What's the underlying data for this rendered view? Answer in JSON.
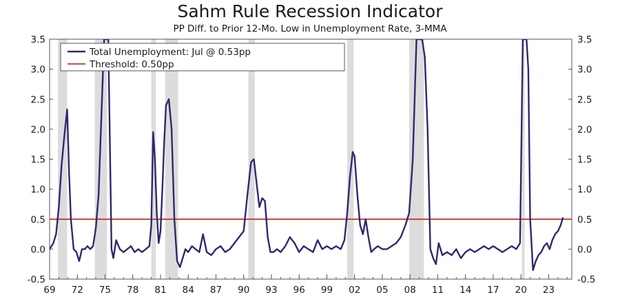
{
  "chart_data": {
    "type": "line",
    "title": "Sahm Rule Recession Indicator",
    "subtitle": "PP Diff. to Prior 12-Mo. Low in Unemployment Rate, 3-MMA",
    "xlabel": "",
    "ylabel": "",
    "xlim": [
      1969.0,
      2025.5
    ],
    "ylim": [
      -0.5,
      3.5
    ],
    "y_ticks": [
      3.5,
      3.0,
      2.5,
      2.0,
      1.5,
      1.0,
      0.5,
      0.0,
      -0.5
    ],
    "y_tick_labels": [
      "3.5",
      "3.0",
      "2.5",
      "2.0",
      "1.5",
      "1.0",
      "0.5",
      "0.0",
      "-0.5"
    ],
    "x_ticks": [
      1969,
      1972,
      1975,
      1978,
      1981,
      1984,
      1987,
      1990,
      1993,
      1996,
      1999,
      2002,
      2005,
      2008,
      2011,
      2014,
      2017,
      2020,
      2023
    ],
    "x_tick_labels": [
      "69",
      "72",
      "75",
      "78",
      "81",
      "84",
      "87",
      "90",
      "93",
      "96",
      "99",
      "02",
      "05",
      "08",
      "11",
      "14",
      "17",
      "20",
      "23"
    ],
    "grid": false,
    "legend_position": "top-left",
    "recessions": [
      [
        1969.9,
        1970.9
      ],
      [
        1973.9,
        1975.2
      ],
      [
        1980.0,
        1980.5
      ],
      [
        1981.5,
        1982.9
      ],
      [
        1990.5,
        1991.2
      ],
      [
        2001.2,
        2001.9
      ],
      [
        2007.9,
        2009.5
      ],
      [
        2020.1,
        2020.4
      ]
    ],
    "colors": {
      "series": "#2b2a6e",
      "threshold": "#c0392b",
      "recession": "#dcdcdc",
      "axis": "#555555"
    },
    "series": [
      {
        "name": "Total Unemployment: Jul @ 0.53pp",
        "color": "#2b2a6e",
        "x": [
          1969.0,
          1969.4,
          1969.7,
          1970.0,
          1970.3,
          1970.6,
          1970.9,
          1971.1,
          1971.3,
          1971.6,
          1971.9,
          1972.2,
          1972.5,
          1972.8,
          1973.1,
          1973.4,
          1973.7,
          1974.0,
          1974.3,
          1974.6,
          1974.9,
          1975.2,
          1975.35,
          1975.5,
          1975.7,
          1975.9,
          1976.2,
          1976.6,
          1977.0,
          1977.4,
          1977.8,
          1978.2,
          1978.6,
          1979.0,
          1979.4,
          1979.8,
          1980.0,
          1980.2,
          1980.4,
          1980.6,
          1980.8,
          1981.0,
          1981.2,
          1981.4,
          1981.6,
          1981.9,
          1982.2,
          1982.5,
          1982.8,
          1983.1,
          1983.4,
          1983.7,
          1984.0,
          1984.4,
          1984.8,
          1985.2,
          1985.6,
          1986.0,
          1986.5,
          1987.0,
          1987.5,
          1988.0,
          1988.5,
          1989.0,
          1989.5,
          1990.0,
          1990.4,
          1990.8,
          1991.1,
          1991.4,
          1991.7,
          1992.0,
          1992.3,
          1992.6,
          1992.9,
          1993.2,
          1993.6,
          1994.0,
          1994.5,
          1995.0,
          1995.5,
          1996.0,
          1996.5,
          1997.0,
          1997.5,
          1998.0,
          1998.5,
          1999.0,
          1999.5,
          2000.0,
          2000.5,
          2000.9,
          2001.2,
          2001.5,
          2001.8,
          2002.0,
          2002.3,
          2002.6,
          2002.9,
          2003.2,
          2003.5,
          2003.8,
          2004.1,
          2004.5,
          2005.0,
          2005.5,
          2006.0,
          2006.5,
          2007.0,
          2007.5,
          2007.9,
          2008.3,
          2008.7,
          2009.0,
          2009.3,
          2009.6,
          2009.9,
          2010.2,
          2010.5,
          2010.8,
          2011.1,
          2011.5,
          2012.0,
          2012.5,
          2013.0,
          2013.5,
          2014.0,
          2014.5,
          2015.0,
          2015.5,
          2016.0,
          2016.5,
          2017.0,
          2017.5,
          2018.0,
          2018.5,
          2019.0,
          2019.5,
          2019.9,
          2020.2,
          2020.4,
          2020.6,
          2020.8,
          2021.0,
          2021.3,
          2021.6,
          2021.9,
          2022.2,
          2022.5,
          2022.8,
          2023.1,
          2023.4,
          2023.7,
          2024.0,
          2024.3,
          2024.55
        ],
        "y": [
          0.0,
          0.1,
          0.25,
          0.7,
          1.4,
          1.9,
          2.33,
          1.3,
          0.5,
          0.0,
          -0.05,
          -0.2,
          0.0,
          0.0,
          0.05,
          0.0,
          0.05,
          0.35,
          0.9,
          2.2,
          3.5,
          3.5,
          3.5,
          2.0,
          0.0,
          -0.15,
          0.15,
          0.0,
          -0.05,
          0.0,
          0.05,
          -0.05,
          0.0,
          -0.05,
          0.0,
          0.05,
          0.4,
          1.95,
          1.5,
          0.6,
          0.1,
          0.3,
          1.0,
          1.8,
          2.4,
          2.5,
          2.0,
          0.5,
          -0.2,
          -0.3,
          -0.15,
          0.0,
          -0.05,
          0.05,
          0.0,
          -0.05,
          0.25,
          -0.05,
          -0.1,
          0.0,
          0.05,
          -0.05,
          0.0,
          0.1,
          0.2,
          0.3,
          0.9,
          1.45,
          1.5,
          1.1,
          0.7,
          0.85,
          0.8,
          0.2,
          -0.05,
          -0.05,
          0.0,
          -0.05,
          0.05,
          0.2,
          0.1,
          -0.05,
          0.05,
          0.0,
          -0.05,
          0.15,
          0.0,
          0.05,
          0.0,
          0.05,
          0.0,
          0.15,
          0.6,
          1.2,
          1.62,
          1.55,
          0.9,
          0.4,
          0.25,
          0.5,
          0.2,
          -0.05,
          0.0,
          0.05,
          0.0,
          0.0,
          0.05,
          0.1,
          0.2,
          0.4,
          0.6,
          1.5,
          3.5,
          3.5,
          3.5,
          3.2,
          2.0,
          0.0,
          -0.15,
          -0.25,
          0.1,
          -0.1,
          -0.05,
          -0.1,
          0.0,
          -0.15,
          -0.05,
          0.0,
          -0.05,
          0.0,
          0.05,
          0.0,
          0.05,
          0.0,
          -0.05,
          0.0,
          0.05,
          0.0,
          0.1,
          3.5,
          3.5,
          3.5,
          3.0,
          0.5,
          -0.35,
          -0.2,
          -0.1,
          -0.05,
          0.05,
          0.1,
          0.0,
          0.15,
          0.25,
          0.3,
          0.4,
          0.53
        ]
      },
      {
        "name": "Threshold: 0.50pp",
        "color": "#c0392b",
        "x": [
          1969.0,
          2025.5
        ],
        "y": [
          0.5,
          0.5
        ]
      }
    ]
  }
}
